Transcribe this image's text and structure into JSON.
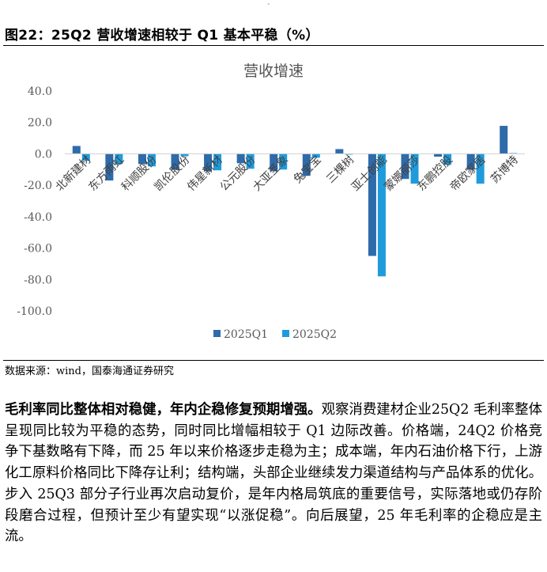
{
  "figure": {
    "title": "图22：25Q2 营收增速相较于 Q1 基本平稳（%）",
    "source": "数据来源：wind，国泰海通证券研究"
  },
  "chart_data": {
    "type": "bar",
    "title": "营收增速",
    "categories": [
      "北新建材",
      "东方雨虹",
      "科顺股份",
      "凯伦股份",
      "伟星新材",
      "公元股份",
      "大亚圣象",
      "兔宝宝",
      "三棵树",
      "亚士创能",
      "蒙娜丽莎",
      "东鹏控股",
      "帝欧家居",
      "苏博特"
    ],
    "series": [
      {
        "name": "2025Q1",
        "color": "#2E6BAA",
        "values": [
          5.0,
          -17.0,
          -6.5,
          -10.0,
          -11.0,
          -6.0,
          -11.0,
          -14.0,
          3.0,
          -65.0,
          -16.0,
          -1.8,
          -10.0,
          17.8
        ]
      },
      {
        "name": "2025Q2",
        "color": "#1F9BDC",
        "values": [
          -4.5,
          -6.5,
          -8.0,
          -1.5,
          -10.5,
          -9.5,
          -10.0,
          -2.5,
          -0.5,
          -78.0,
          -19.0,
          -7.0,
          -19.0,
          0.5
        ]
      }
    ],
    "yticks": [
      "40.0",
      "20.0",
      "0.0",
      "-20.0",
      "-40.0",
      "-60.0",
      "-80.0",
      "-100.0"
    ],
    "ylim": [
      -100,
      40
    ],
    "legend": "bottom",
    "grid": false
  },
  "body": {
    "lead": "毛利率同比整体相对稳健，年内企稳修复预期增强。",
    "text": "观察消费建材企业25Q2 毛利率整体呈现同比较为平稳的态势，同时同比增幅相较于 Q1 边际改善。价格端，24Q2 价格竞争下基数略有下降，而 25 年以来价格逐步走稳为主；成本端，年内石油价格下行，上游化工原料价格同比下降存让利；结构端，头部企业继续发力渠道结构与产品体系的优化。步入 25Q3 部分子行业再次启动复价，是年内格局筑底的重要信号，实际落地或仍存阶段磨合过程，但预计至少有望实现“以涨促稳”。向后展望，25 年毛利率的企稳应是主流。"
  }
}
